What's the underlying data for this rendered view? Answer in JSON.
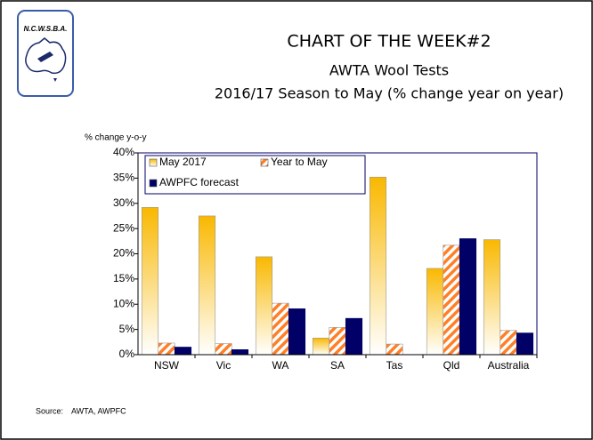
{
  "logo": {
    "text": "N.C.W.S.B.A."
  },
  "chart_data": {
    "type": "bar",
    "title": "CHART OF THE WEEK#2",
    "subtitle": [
      "AWTA Wool Tests",
      "2016/17 Season to May (% change year on year)"
    ],
    "y_label": "% change y-o-y",
    "categories": [
      "NSW",
      "Vic",
      "WA",
      "SA",
      "Tas",
      "Qld",
      "Australia"
    ],
    "series": [
      {
        "name": "May 2017",
        "color": "#f9b800",
        "values": [
          29.2,
          27.5,
          19.4,
          3.3,
          35.2,
          17.1,
          22.8
        ]
      },
      {
        "name": "Year to May",
        "color": "#ff7f27",
        "values": [
          2.3,
          2.2,
          10.2,
          5.4,
          2.1,
          21.7,
          4.8
        ]
      },
      {
        "name": "AWPFC forecast",
        "color": "#000066",
        "values": [
          1.5,
          1.0,
          9.1,
          7.2,
          null,
          23.0,
          4.3
        ]
      }
    ],
    "ylim": [
      0,
      40
    ],
    "yticks": [
      {
        "value": 0,
        "label": "0%"
      },
      {
        "value": 5,
        "label": "5%"
      },
      {
        "value": 10,
        "label": "10%"
      },
      {
        "value": 15,
        "label": "15%"
      },
      {
        "value": 20,
        "label": "20%"
      },
      {
        "value": 25,
        "label": "25%"
      },
      {
        "value": 30,
        "label": "30%"
      },
      {
        "value": 35,
        "label": "35%"
      },
      {
        "value": 40,
        "label": "40%"
      }
    ],
    "source_label": "Source:",
    "source": "AWTA, AWPFC"
  }
}
